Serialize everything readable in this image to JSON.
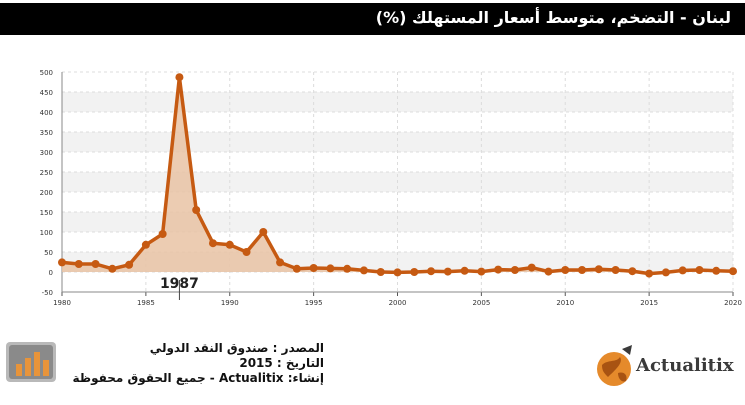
{
  "header": {
    "title": "لبنان - التضخم، متوسط أسعار المستهلك (%)"
  },
  "chart_data": {
    "type": "area",
    "title": "لبنان - التضخم، متوسط أسعار المستهلك (%)",
    "xlabel": "",
    "ylabel": "",
    "xlim": [
      1980,
      2020
    ],
    "ylim": [
      -50,
      500
    ],
    "x_ticks": [
      1980,
      1985,
      1990,
      1995,
      2000,
      2005,
      2010,
      2015,
      2020
    ],
    "y_ticks": [
      -50,
      0,
      50,
      100,
      150,
      200,
      250,
      300,
      350,
      400,
      450,
      500
    ],
    "grid": true,
    "highlight": {
      "x": 1987,
      "label": "1987"
    },
    "series": [
      {
        "x": [
          1980,
          1981,
          1982,
          1983,
          1984,
          1985,
          1986,
          1987,
          1988,
          1989,
          1990,
          1991,
          1992,
          1993,
          1994,
          1995,
          1996,
          1997,
          1998,
          1999,
          2000,
          2001,
          2002,
          2003,
          2004,
          2005,
          2006,
          2007,
          2008,
          2009,
          2010,
          2011,
          2012,
          2013,
          2014,
          2015,
          2016,
          2017,
          2018,
          2019,
          2020
        ],
        "values": [
          24,
          20,
          20,
          8,
          18,
          68,
          95,
          487,
          155,
          72,
          68,
          50,
          100,
          24,
          8,
          10,
          9,
          8,
          4,
          0,
          -1,
          0,
          2,
          1,
          3,
          1,
          6,
          5,
          11,
          1,
          5,
          5,
          7,
          5,
          2,
          -4,
          -1,
          4,
          5,
          3,
          2
        ]
      }
    ],
    "colors": {
      "line": "#c65a12",
      "area": "#e9c3a4"
    }
  },
  "footer": {
    "source": "المصدر : صندوق النقد الدولي",
    "date": "التاريخ : 2015",
    "credit": "إنشاء: Actualitix - جميع الحقوق محفوظة"
  },
  "brand": {
    "name": "Actualitix"
  }
}
